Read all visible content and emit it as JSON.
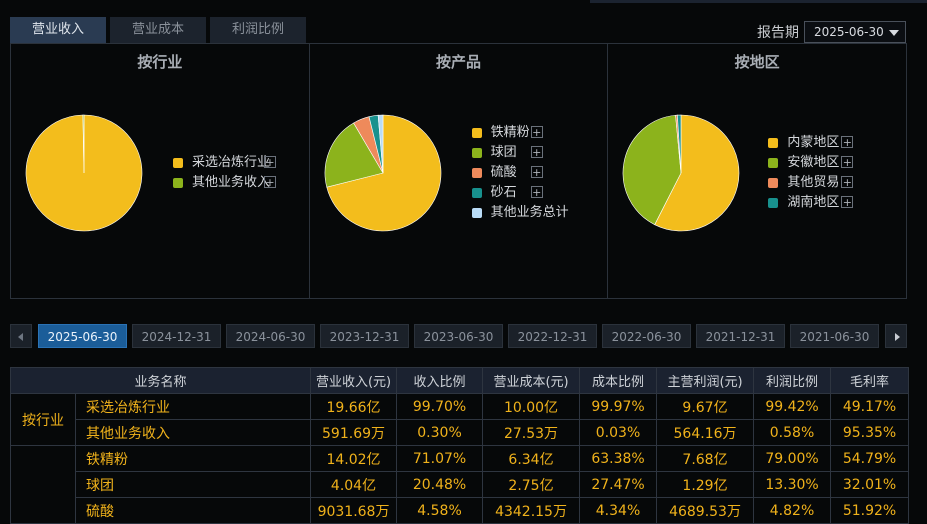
{
  "tabs": [
    "营业收入",
    "营业成本",
    "利润比例"
  ],
  "report_period": {
    "label": "报告期",
    "value": "2025-06-30"
  },
  "chart_data": [
    {
      "type": "pie",
      "title": "按行业",
      "slices": [
        {
          "label": "采选冶炼行业",
          "value": 99.7,
          "color": "#f3bd1c"
        },
        {
          "label": "其他业务收入",
          "value": 0.3,
          "color": "#8cb31c"
        }
      ]
    },
    {
      "type": "pie",
      "title": "按产品",
      "slices": [
        {
          "label": "铁精粉",
          "value": 71.07,
          "color": "#f3bd1c"
        },
        {
          "label": "球团",
          "value": 20.48,
          "color": "#8cb31c"
        },
        {
          "label": "硫酸",
          "value": 4.58,
          "color": "#ee8a5b"
        },
        {
          "label": "砂石",
          "value": 2.53,
          "color": "#18918e"
        },
        {
          "label": "其他业务总计",
          "value": 1.34,
          "color": "#b9dcf7"
        }
      ]
    },
    {
      "type": "pie",
      "title": "按地区",
      "slices": [
        {
          "label": "内蒙地区",
          "value": 57.5,
          "color": "#f3bd1c"
        },
        {
          "label": "安徽地区",
          "value": 41.0,
          "color": "#8cb31c"
        },
        {
          "label": "其他贸易",
          "value": 0.5,
          "color": "#ee8a5b"
        },
        {
          "label": "湖南地区",
          "value": 1.0,
          "color": "#18918e"
        }
      ]
    }
  ],
  "dates": [
    "2025-06-30",
    "2024-12-31",
    "2024-06-30",
    "2023-12-31",
    "2023-06-30",
    "2022-12-31",
    "2022-06-30",
    "2021-12-31",
    "2021-06-30"
  ],
  "active_date": "2025-06-30",
  "table": {
    "headers": [
      "业务名称",
      "营业收入(元)",
      "收入比例",
      "营业成本(元)",
      "成本比例",
      "主营利润(元)",
      "利润比例",
      "毛利率"
    ],
    "groups": [
      {
        "label": "按行业",
        "rows": [
          [
            "采选冶炼行业",
            "19.66亿",
            "99.70%",
            "10.00亿",
            "99.97%",
            "9.67亿",
            "99.42%",
            "49.17%"
          ],
          [
            "其他业务收入",
            "591.69万",
            "0.30%",
            "27.53万",
            "0.03%",
            "564.16万",
            "0.58%",
            "95.35%"
          ]
        ]
      },
      {
        "label": "",
        "rows": [
          [
            "铁精粉",
            "14.02亿",
            "71.07%",
            "6.34亿",
            "63.38%",
            "7.68亿",
            "79.00%",
            "54.79%"
          ],
          [
            "球团",
            "4.04亿",
            "20.48%",
            "2.75亿",
            "27.47%",
            "1.29亿",
            "13.30%",
            "32.01%"
          ],
          [
            "硫酸",
            "9031.68万",
            "4.58%",
            "4342.15万",
            "4.34%",
            "4689.53万",
            "4.82%",
            "51.92%"
          ]
        ]
      }
    ]
  }
}
